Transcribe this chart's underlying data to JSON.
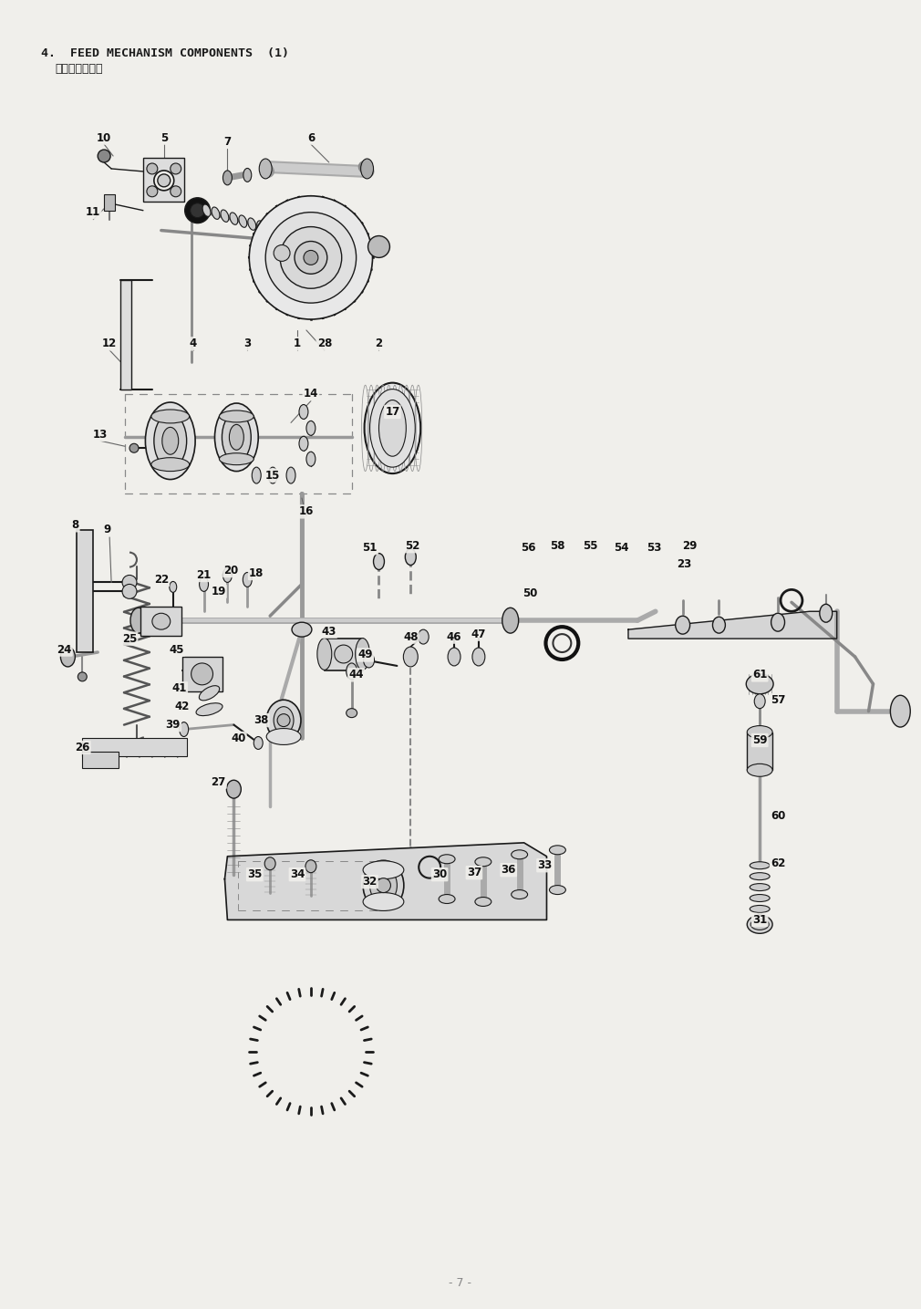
{
  "title_line1": "4.  FEED MECHANISM COMPONENTS  (1)",
  "title_line2": "送り関係（１）",
  "page_number": "- 7 -",
  "bg_color": "#f0efeb",
  "text_color": "#1a1a1a",
  "line_color": "#1a1a1a",
  "fig_width": 10.1,
  "fig_height": 14.35,
  "dpi": 100
}
